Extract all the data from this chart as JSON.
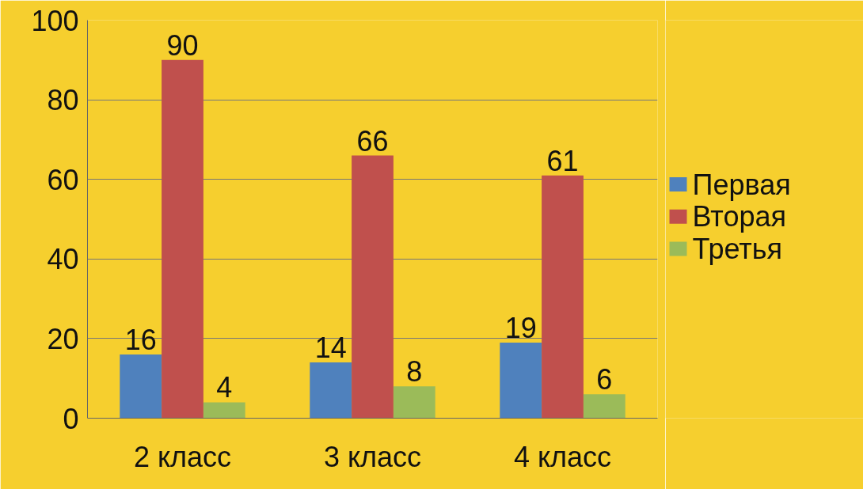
{
  "chart_data": {
    "type": "bar",
    "categories": [
      "2 класс",
      "3 класс",
      "4 класс"
    ],
    "series": [
      {
        "name": "Первая",
        "color": "#4f81bd",
        "values": [
          16,
          14,
          19
        ]
      },
      {
        "name": "Вторая",
        "color": "#c0504d",
        "values": [
          90,
          66,
          61
        ]
      },
      {
        "name": "Третья",
        "color": "#9bbb59",
        "values": [
          4,
          8,
          6
        ]
      }
    ],
    "ylim": [
      0,
      100
    ],
    "yticks": [
      0,
      20,
      40,
      60,
      80,
      100
    ],
    "grid": "y",
    "legend": "right",
    "data_labels": true
  }
}
